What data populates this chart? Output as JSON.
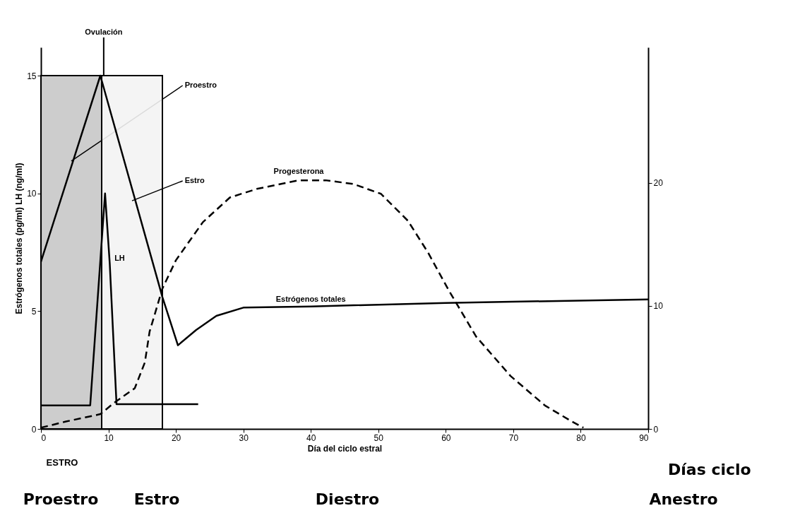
{
  "chart_data": {
    "type": "line",
    "xlabel": "Día del ciclo estral",
    "ylabel": "Estrógenos totales (pg/ml) LH (ng/ml)",
    "xlim": [
      0,
      90
    ],
    "xticks": [
      0,
      10,
      20,
      30,
      40,
      50,
      60,
      70,
      80,
      90
    ],
    "ylim": [
      0,
      16.2
    ],
    "yticks": [
      0,
      5,
      10,
      15
    ],
    "y2lim": [
      0,
      31
    ],
    "y2ticks": [
      0,
      10,
      20
    ],
    "grid": false,
    "legend": false,
    "marker": "none",
    "series": [
      {
        "name": "Progesterona",
        "color": "#000000",
        "axis": "y2",
        "line_style": "dashed",
        "x": [
          0,
          3.7,
          8.8,
          10.8,
          13.9,
          15.4,
          16.1,
          18,
          20,
          24,
          28,
          32,
          38.2,
          42.2,
          46.3,
          50.4,
          54.4,
          57.4,
          60.5,
          64.5,
          69.6,
          74.7,
          78.7,
          80.4
        ],
        "values": [
          0.1,
          0.6,
          1.2,
          2.1,
          3.3,
          5.4,
          7.9,
          11.4,
          13.7,
          16.8,
          18.8,
          19.5,
          20.2,
          20.2,
          19.9,
          19.1,
          16.9,
          14.3,
          11.2,
          7.5,
          4.3,
          1.9,
          0.6,
          0.1
        ]
      },
      {
        "name": "Estrógenos totales",
        "color": "#000000",
        "line_style": "solid",
        "x": [
          0,
          8.8,
          18,
          20.3,
          23,
          26,
          30,
          40,
          60,
          90
        ],
        "values": [
          7.1,
          15,
          5.6,
          3.55,
          4.2,
          4.8,
          5.15,
          5.2,
          5.35,
          5.5
        ]
      },
      {
        "name": "LH",
        "color": "#000000",
        "line_style": "solid",
        "x": [
          0,
          7.3,
          9.5,
          10.2,
          11.2,
          23.3
        ],
        "values": [
          1,
          1,
          10,
          7,
          1.05,
          1.05
        ]
      }
    ],
    "bands": [
      {
        "axis": "x",
        "from": 0,
        "to": 9,
        "label": "Proestro",
        "color": "#c8c8c8"
      },
      {
        "axis": "x",
        "from": 9,
        "to": 18,
        "label": "Estro",
        "color": "#f3f3f3"
      }
    ],
    "annotations": [
      {
        "text": "Ovulación",
        "x": 9.3,
        "y": 15
      },
      "ESTRO",
      "Días ciclo",
      "Proestro",
      "Estro",
      "Diestro",
      "Anestro"
    ]
  }
}
